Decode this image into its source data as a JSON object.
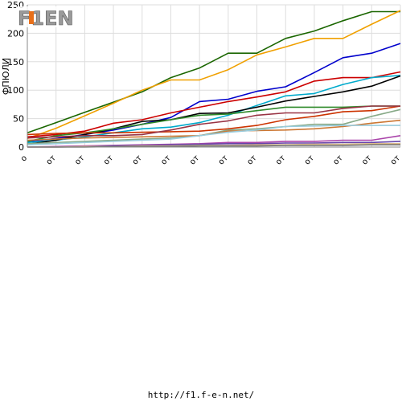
{
  "logo": {
    "text": "F1EN",
    "accent_color": "#e8701a",
    "color": "#9a9a9a"
  },
  "footer": {
    "url": "http://f1.f-e-n.net/"
  },
  "chart_data": {
    "type": "line",
    "ylabel": "ФПЮЛИ",
    "ylim": [
      0,
      250
    ],
    "yticks": [
      0,
      50,
      100,
      150,
      200,
      250
    ],
    "grid": true,
    "legend": "none",
    "x": [
      "о",
      "от",
      "от",
      "от",
      "от",
      "от",
      "от",
      "от",
      "от",
      "от",
      "от",
      "от",
      "от",
      "от"
    ],
    "series": [
      {
        "color": "#1a6600",
        "values": [
          25,
          43,
          61,
          79,
          97,
          122,
          139,
          165,
          165,
          191,
          204,
          222,
          238,
          238
        ]
      },
      {
        "color": "#f0a000",
        "values": [
          15,
          33,
          55,
          77,
          100,
          118,
          118,
          136,
          162,
          176,
          191,
          191,
          216,
          240
        ]
      },
      {
        "color": "#0000cc",
        "values": [
          10,
          15,
          22,
          30,
          40,
          52,
          80,
          84,
          98,
          106,
          131,
          157,
          165,
          182
        ]
      },
      {
        "color": "#cc0000",
        "values": [
          18,
          22,
          28,
          42,
          48,
          60,
          70,
          80,
          88,
          97,
          116,
          122,
          122,
          132
        ]
      },
      {
        "color": "#00aacc",
        "values": [
          8,
          12,
          18,
          25,
          32,
          35,
          43,
          56,
          73,
          90,
          94,
          110,
          122,
          126
        ]
      },
      {
        "color": "#000000",
        "values": [
          5,
          12,
          22,
          32,
          45,
          48,
          59,
          60,
          70,
          81,
          89,
          97,
          107,
          125
        ]
      },
      {
        "color": "#2f8a2a",
        "values": [
          10,
          20,
          25,
          32,
          40,
          48,
          56,
          58,
          64,
          70,
          70,
          70,
          72,
          72
        ]
      },
      {
        "color": "#cc3300",
        "values": [
          22,
          24,
          25,
          25,
          26,
          27,
          28,
          32,
          38,
          48,
          54,
          62,
          64,
          72
        ]
      },
      {
        "color": "#993344",
        "values": [
          16,
          18,
          20,
          20,
          22,
          30,
          40,
          46,
          56,
          60,
          60,
          68,
          72,
          72
        ]
      },
      {
        "color": "#88aa88",
        "values": [
          6,
          8,
          10,
          12,
          14,
          16,
          20,
          30,
          32,
          36,
          40,
          40,
          54,
          66
        ]
      },
      {
        "color": "#cc7733",
        "values": [
          12,
          14,
          16,
          17,
          18,
          19,
          20,
          28,
          29,
          30,
          32,
          36,
          42,
          47
        ]
      },
      {
        "color": "#99ccdd",
        "values": [
          4,
          6,
          8,
          10,
          12,
          14,
          20,
          26,
          30,
          36,
          37,
          38,
          38,
          38
        ]
      },
      {
        "color": "#aa44aa",
        "values": [
          0,
          1,
          2,
          3,
          4,
          5,
          6,
          8,
          8,
          10,
          10,
          12,
          12,
          20
        ]
      },
      {
        "color": "#6644aa",
        "values": [
          0,
          0,
          1,
          2,
          3,
          4,
          5,
          6,
          6,
          7,
          7,
          8,
          8,
          10
        ]
      },
      {
        "color": "#ddbb88",
        "values": [
          0,
          0,
          1,
          1,
          2,
          2,
          3,
          3,
          4,
          4,
          5,
          5,
          6,
          6
        ]
      },
      {
        "color": "#777777",
        "values": [
          0,
          0,
          0,
          1,
          1,
          1,
          2,
          2,
          2,
          3,
          3,
          3,
          4,
          4
        ]
      }
    ]
  }
}
